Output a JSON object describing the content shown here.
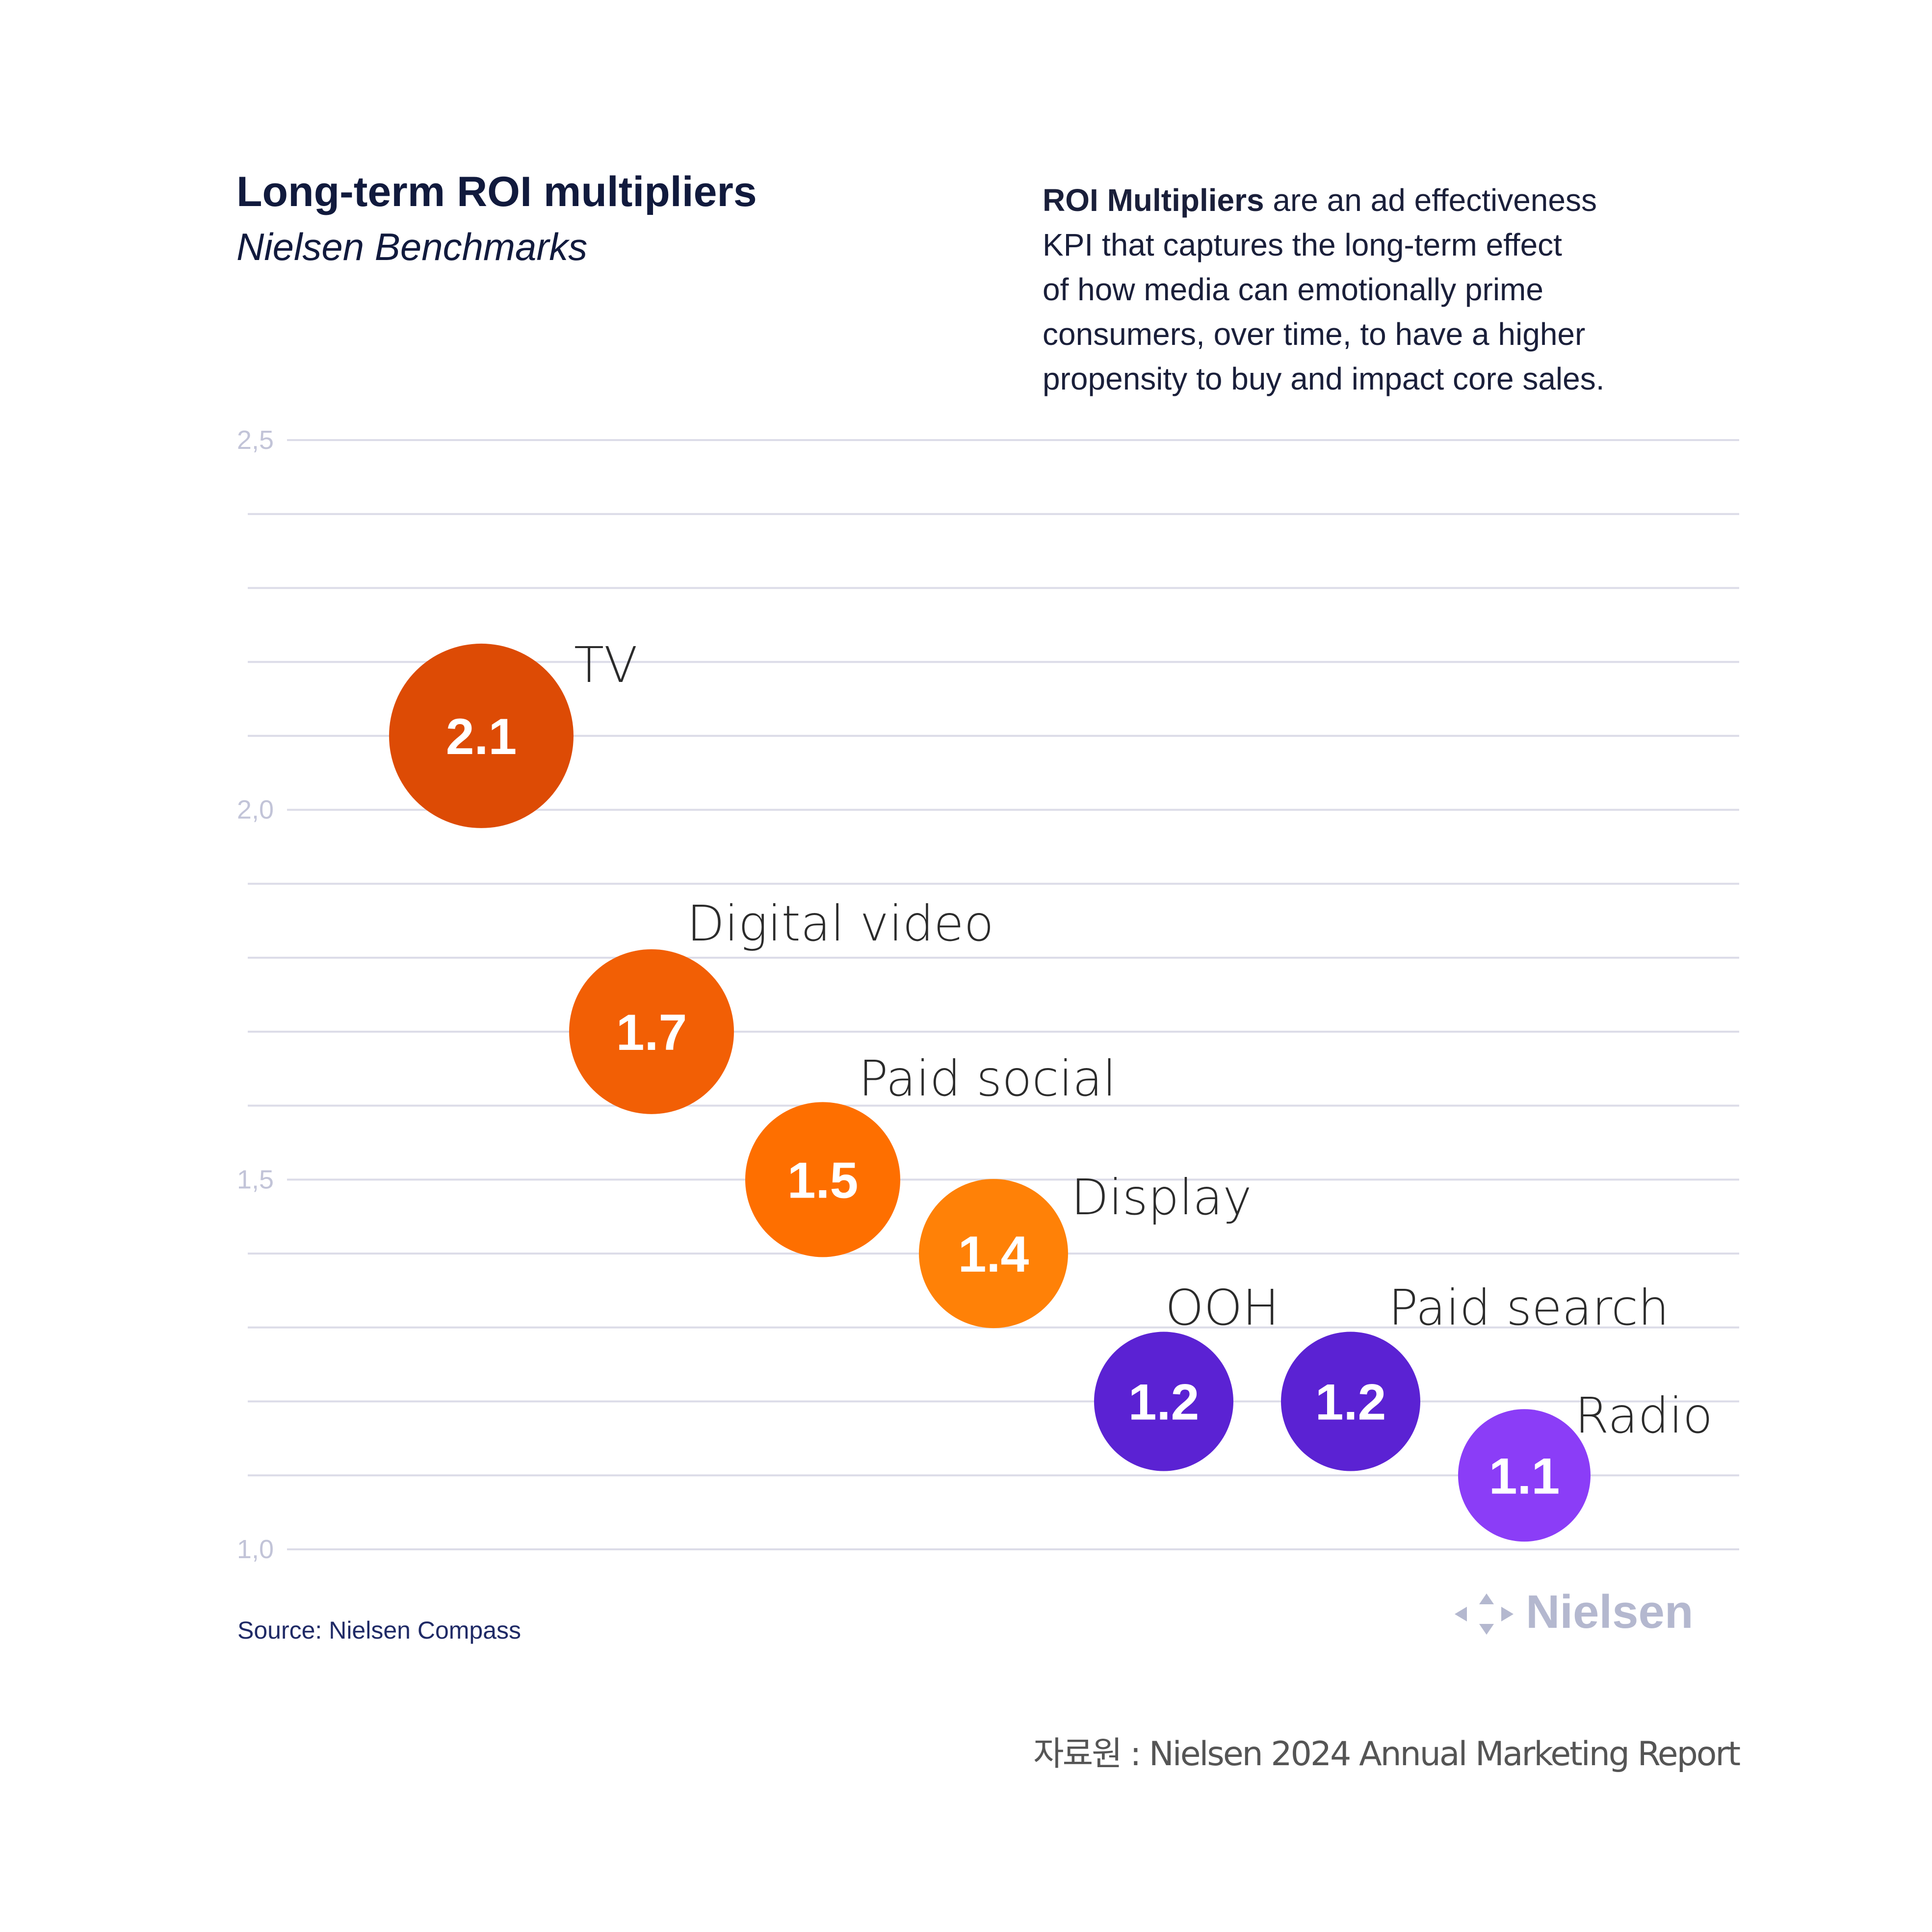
{
  "title": "Long-term ROI multipliers",
  "subtitle": "Nielsen Benchmarks",
  "description": {
    "bold": "ROI Multipliers",
    "lines": [
      " are an ad effectiveness",
      "KPI that captures the long-term effect",
      "of how media can emotionally prime",
      "consumers, over time, to have a higher",
      "propensity to buy and impact core sales."
    ]
  },
  "source": "Source: Nielsen Compass",
  "logo_text": "Nielsen",
  "logo_icon": "nielsen-diamond-icon",
  "credit": "자료원 : Nielsen 2024 Annual Marketing Report",
  "chart_data": {
    "type": "scatter",
    "ylim": [
      1.0,
      2.5
    ],
    "yticks": [
      1.0,
      1.5,
      2.0,
      2.5
    ],
    "ytick_labels": [
      "1,0",
      "1,5",
      "2,0",
      "2,5"
    ],
    "minor_grid_step": 0.1,
    "grid": true,
    "points": [
      {
        "label": "TV",
        "value": 2.1,
        "value_label": "2.1",
        "color": "#DD4B05"
      },
      {
        "label": "Digital video",
        "value": 1.7,
        "value_label": "1.7",
        "color": "#F25F05"
      },
      {
        "label": "Paid social",
        "value": 1.5,
        "value_label": "1.5",
        "color": "#FE6F00"
      },
      {
        "label": "Display",
        "value": 1.4,
        "value_label": "1.4",
        "color": "#FF8107"
      },
      {
        "label": "OOH",
        "value": 1.2,
        "value_label": "1.2",
        "color": "#5B22D3"
      },
      {
        "label": "Paid search",
        "value": 1.2,
        "value_label": "1.2",
        "color": "#5B22D3"
      },
      {
        "label": "Radio",
        "value": 1.1,
        "value_label": "1.1",
        "color": "#8B3DF7"
      }
    ]
  }
}
